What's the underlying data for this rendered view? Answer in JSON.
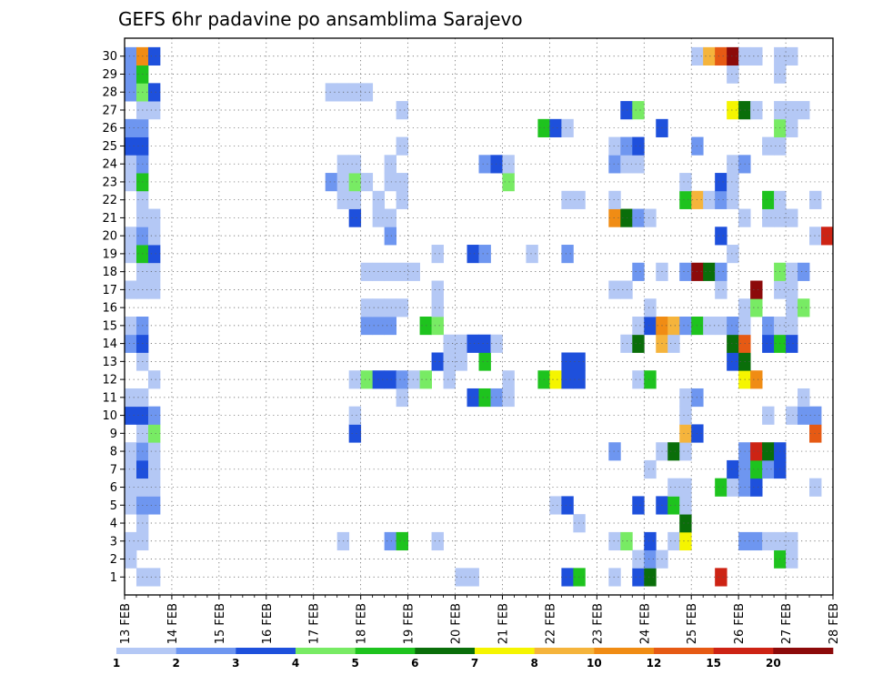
{
  "chart_data": {
    "type": "heatmap",
    "title": "GEFS 6hr padavine po ansamblima Sarajevo",
    "y_tick_labels": [
      "1",
      "2",
      "3",
      "4",
      "5",
      "6",
      "7",
      "8",
      "9",
      "10",
      "11",
      "12",
      "13",
      "14",
      "15",
      "16",
      "17",
      "18",
      "19",
      "20",
      "21",
      "22",
      "23",
      "24",
      "25",
      "26",
      "27",
      "28",
      "29",
      "30"
    ],
    "x_tick_labels": [
      "13 FEB",
      "14 FEB",
      "15 FEB",
      "16 FEB",
      "17 FEB",
      "18 FEB",
      "19 FEB",
      "20 FEB",
      "21 FEB",
      "22 FEB",
      "23 FEB",
      "24 FEB",
      "25 FEB",
      "26 FEB",
      "27 FEB",
      "28 FEB"
    ],
    "x_range": [
      0,
      60
    ],
    "y_range": [
      0,
      30
    ],
    "grid": "dotted",
    "colorbar_labels": [
      "1",
      "2",
      "3",
      "4",
      "5",
      "6",
      "7",
      "8",
      "10",
      "12",
      "15",
      "20"
    ],
    "levels": [
      {
        "name": "1-2",
        "color": "#b4c8f5"
      },
      {
        "name": "2-3",
        "color": "#6e96f0"
      },
      {
        "name": "3-4",
        "color": "#1e50dc"
      },
      {
        "name": "4-5",
        "color": "#78eb64"
      },
      {
        "name": "5-6",
        "color": "#1ec31e"
      },
      {
        "name": "6-7",
        "color": "#0a6e0a"
      },
      {
        "name": "7-8",
        "color": "#f5f500"
      },
      {
        "name": "8-10",
        "color": "#f5b43c"
      },
      {
        "name": "10-12",
        "color": "#f08c14"
      },
      {
        "name": "12-15",
        "color": "#e65a14"
      },
      {
        "name": "15-20",
        "color": "#cd2314"
      },
      {
        "name": "20+",
        "color": "#8c0a0a"
      }
    ],
    "cells_by_member": {
      "30": [
        [
          1,
          2
        ],
        [
          2,
          9
        ],
        [
          3,
          3
        ],
        [
          49,
          1
        ],
        [
          50,
          8
        ],
        [
          51,
          10
        ],
        [
          52,
          12
        ],
        [
          53,
          1
        ],
        [
          54,
          1
        ],
        [
          56,
          1
        ],
        [
          57,
          1
        ]
      ],
      "29": [
        [
          1,
          2
        ],
        [
          2,
          5
        ],
        [
          52,
          1
        ],
        [
          56,
          1
        ]
      ],
      "28": [
        [
          1,
          2
        ],
        [
          2,
          4
        ],
        [
          3,
          3
        ],
        [
          18,
          1
        ],
        [
          19,
          1
        ],
        [
          20,
          1
        ],
        [
          21,
          1
        ]
      ],
      "27": [
        [
          2,
          1
        ],
        [
          3,
          1
        ],
        [
          24,
          1
        ],
        [
          43,
          3
        ],
        [
          44,
          4
        ],
        [
          52,
          7
        ],
        [
          53,
          6
        ],
        [
          54,
          1
        ],
        [
          56,
          1
        ],
        [
          57,
          1
        ],
        [
          58,
          1
        ]
      ],
      "26": [
        [
          1,
          2
        ],
        [
          2,
          2
        ],
        [
          36,
          5
        ],
        [
          37,
          3
        ],
        [
          38,
          1
        ],
        [
          46,
          3
        ],
        [
          56,
          4
        ],
        [
          57,
          1
        ]
      ],
      "25": [
        [
          1,
          3
        ],
        [
          2,
          3
        ],
        [
          24,
          1
        ],
        [
          42,
          1
        ],
        [
          43,
          2
        ],
        [
          44,
          3
        ],
        [
          49,
          2
        ],
        [
          55,
          1
        ],
        [
          56,
          1
        ]
      ],
      "24": [
        [
          1,
          1
        ],
        [
          2,
          2
        ],
        [
          19,
          1
        ],
        [
          20,
          1
        ],
        [
          23,
          1
        ],
        [
          31,
          2
        ],
        [
          32,
          3
        ],
        [
          33,
          1
        ],
        [
          42,
          2
        ],
        [
          43,
          1
        ],
        [
          44,
          1
        ],
        [
          52,
          1
        ],
        [
          53,
          2
        ]
      ],
      "23": [
        [
          1,
          1
        ],
        [
          2,
          5
        ],
        [
          18,
          2
        ],
        [
          19,
          1
        ],
        [
          20,
          4
        ],
        [
          21,
          1
        ],
        [
          23,
          1
        ],
        [
          24,
          1
        ],
        [
          33,
          4
        ],
        [
          48,
          1
        ],
        [
          51,
          3
        ],
        [
          52,
          1
        ]
      ],
      "22": [
        [
          2,
          1
        ],
        [
          19,
          1
        ],
        [
          20,
          1
        ],
        [
          22,
          1
        ],
        [
          24,
          1
        ],
        [
          38,
          1
        ],
        [
          39,
          1
        ],
        [
          42,
          1
        ],
        [
          48,
          5
        ],
        [
          49,
          8
        ],
        [
          50,
          1
        ],
        [
          51,
          2
        ],
        [
          52,
          1
        ],
        [
          55,
          5
        ],
        [
          56,
          1
        ],
        [
          59,
          1
        ]
      ],
      "21": [
        [
          2,
          1
        ],
        [
          3,
          1
        ],
        [
          20,
          3
        ],
        [
          22,
          1
        ],
        [
          23,
          1
        ],
        [
          42,
          9
        ],
        [
          43,
          6
        ],
        [
          44,
          2
        ],
        [
          45,
          1
        ],
        [
          53,
          1
        ],
        [
          55,
          1
        ],
        [
          56,
          1
        ],
        [
          57,
          1
        ]
      ],
      "20": [
        [
          1,
          1
        ],
        [
          2,
          2
        ],
        [
          3,
          1
        ],
        [
          23,
          2
        ],
        [
          51,
          3
        ],
        [
          59,
          1
        ],
        [
          60,
          11
        ]
      ],
      "19": [
        [
          1,
          1
        ],
        [
          2,
          5
        ],
        [
          3,
          3
        ],
        [
          27,
          1
        ],
        [
          30,
          3
        ],
        [
          31,
          2
        ],
        [
          35,
          1
        ],
        [
          38,
          2
        ],
        [
          52,
          1
        ]
      ],
      "18": [
        [
          2,
          1
        ],
        [
          3,
          1
        ],
        [
          21,
          1
        ],
        [
          22,
          1
        ],
        [
          23,
          1
        ],
        [
          24,
          1
        ],
        [
          25,
          1
        ],
        [
          44,
          2
        ],
        [
          46,
          1
        ],
        [
          48,
          2
        ],
        [
          49,
          12
        ],
        [
          50,
          6
        ],
        [
          51,
          2
        ],
        [
          56,
          4
        ],
        [
          57,
          1
        ],
        [
          58,
          2
        ]
      ],
      "17": [
        [
          1,
          1
        ],
        [
          2,
          1
        ],
        [
          3,
          1
        ],
        [
          27,
          1
        ],
        [
          42,
          1
        ],
        [
          43,
          1
        ],
        [
          51,
          1
        ],
        [
          54,
          12
        ],
        [
          56,
          1
        ],
        [
          57,
          1
        ]
      ],
      "16": [
        [
          21,
          1
        ],
        [
          22,
          1
        ],
        [
          23,
          1
        ],
        [
          24,
          1
        ],
        [
          27,
          1
        ],
        [
          45,
          1
        ],
        [
          53,
          1
        ],
        [
          54,
          4
        ],
        [
          57,
          1
        ],
        [
          58,
          4
        ]
      ],
      "15": [
        [
          1,
          1
        ],
        [
          2,
          2
        ],
        [
          21,
          2
        ],
        [
          22,
          2
        ],
        [
          23,
          2
        ],
        [
          26,
          5
        ],
        [
          27,
          4
        ],
        [
          44,
          1
        ],
        [
          45,
          3
        ],
        [
          46,
          9
        ],
        [
          47,
          8
        ],
        [
          48,
          2
        ],
        [
          49,
          5
        ],
        [
          50,
          1
        ],
        [
          51,
          1
        ],
        [
          52,
          2
        ],
        [
          53,
          1
        ],
        [
          55,
          2
        ],
        [
          56,
          1
        ],
        [
          57,
          1
        ]
      ],
      "14": [
        [
          1,
          2
        ],
        [
          2,
          3
        ],
        [
          28,
          1
        ],
        [
          29,
          1
        ],
        [
          30,
          3
        ],
        [
          31,
          3
        ],
        [
          32,
          1
        ],
        [
          43,
          1
        ],
        [
          44,
          6
        ],
        [
          46,
          8
        ],
        [
          47,
          1
        ],
        [
          52,
          6
        ],
        [
          53,
          10
        ],
        [
          55,
          3
        ],
        [
          56,
          5
        ],
        [
          57,
          3
        ]
      ],
      "13": [
        [
          2,
          1
        ],
        [
          27,
          3
        ],
        [
          28,
          1
        ],
        [
          29,
          1
        ],
        [
          31,
          5
        ],
        [
          38,
          3
        ],
        [
          39,
          3
        ],
        [
          52,
          3
        ],
        [
          53,
          6
        ]
      ],
      "12": [
        [
          3,
          1
        ],
        [
          20,
          1
        ],
        [
          21,
          4
        ],
        [
          22,
          3
        ],
        [
          23,
          3
        ],
        [
          24,
          2
        ],
        [
          25,
          1
        ],
        [
          26,
          4
        ],
        [
          28,
          1
        ],
        [
          33,
          1
        ],
        [
          36,
          5
        ],
        [
          37,
          7
        ],
        [
          38,
          3
        ],
        [
          39,
          3
        ],
        [
          44,
          1
        ],
        [
          45,
          5
        ],
        [
          53,
          7
        ],
        [
          54,
          9
        ]
      ],
      "11": [
        [
          1,
          1
        ],
        [
          2,
          1
        ],
        [
          24,
          1
        ],
        [
          30,
          3
        ],
        [
          31,
          5
        ],
        [
          32,
          2
        ],
        [
          33,
          1
        ],
        [
          48,
          1
        ],
        [
          49,
          2
        ],
        [
          58,
          1
        ]
      ],
      "10": [
        [
          1,
          3
        ],
        [
          2,
          3
        ],
        [
          3,
          2
        ],
        [
          20,
          1
        ],
        [
          48,
          1
        ],
        [
          55,
          1
        ],
        [
          57,
          1
        ],
        [
          58,
          2
        ],
        [
          59,
          2
        ]
      ],
      "9": [
        [
          2,
          1
        ],
        [
          3,
          4
        ],
        [
          20,
          3
        ],
        [
          48,
          8
        ],
        [
          49,
          3
        ],
        [
          59,
          10
        ]
      ],
      "8": [
        [
          1,
          1
        ],
        [
          2,
          2
        ],
        [
          3,
          1
        ],
        [
          42,
          2
        ],
        [
          46,
          1
        ],
        [
          47,
          6
        ],
        [
          48,
          1
        ],
        [
          53,
          2
        ],
        [
          54,
          11
        ],
        [
          55,
          6
        ],
        [
          56,
          3
        ]
      ],
      "7": [
        [
          1,
          1
        ],
        [
          2,
          3
        ],
        [
          3,
          1
        ],
        [
          45,
          1
        ],
        [
          52,
          3
        ],
        [
          53,
          2
        ],
        [
          54,
          5
        ],
        [
          55,
          2
        ],
        [
          56,
          3
        ]
      ],
      "6": [
        [
          1,
          1
        ],
        [
          2,
          1
        ],
        [
          3,
          1
        ],
        [
          47,
          1
        ],
        [
          48,
          1
        ],
        [
          51,
          5
        ],
        [
          52,
          1
        ],
        [
          53,
          2
        ],
        [
          54,
          3
        ],
        [
          59,
          1
        ]
      ],
      "5": [
        [
          1,
          1
        ],
        [
          2,
          2
        ],
        [
          3,
          2
        ],
        [
          37,
          1
        ],
        [
          38,
          3
        ],
        [
          44,
          3
        ],
        [
          46,
          3
        ],
        [
          47,
          5
        ],
        [
          48,
          1
        ]
      ],
      "4": [
        [
          2,
          1
        ],
        [
          39,
          1
        ],
        [
          48,
          6
        ]
      ],
      "3": [
        [
          1,
          1
        ],
        [
          2,
          1
        ],
        [
          19,
          1
        ],
        [
          23,
          2
        ],
        [
          24,
          5
        ],
        [
          27,
          1
        ],
        [
          42,
          1
        ],
        [
          43,
          4
        ],
        [
          45,
          3
        ],
        [
          47,
          1
        ],
        [
          48,
          7
        ],
        [
          53,
          2
        ],
        [
          54,
          2
        ],
        [
          55,
          1
        ],
        [
          56,
          1
        ],
        [
          57,
          1
        ]
      ],
      "2": [
        [
          1,
          1
        ],
        [
          44,
          1
        ],
        [
          45,
          2
        ],
        [
          46,
          1
        ],
        [
          56,
          5
        ],
        [
          57,
          1
        ]
      ],
      "1": [
        [
          2,
          1
        ],
        [
          3,
          1
        ],
        [
          29,
          1
        ],
        [
          30,
          1
        ],
        [
          38,
          3
        ],
        [
          39,
          5
        ],
        [
          42,
          1
        ],
        [
          44,
          3
        ],
        [
          45,
          6
        ],
        [
          51,
          11
        ]
      ]
    }
  }
}
